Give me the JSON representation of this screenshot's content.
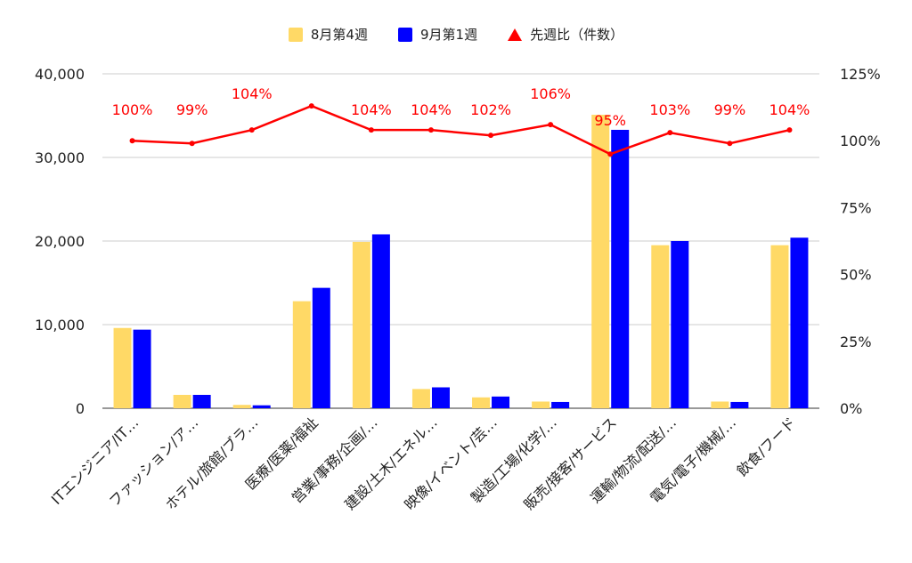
{
  "chart_data": {
    "type": "bar",
    "categories": [
      "ITエンジニア/IT…",
      "ファッション/ア…",
      "ホテル/旅館/ブラ…",
      "医療/医薬/福祉",
      "営業/事務/企画/…",
      "建設/土木/エネル…",
      "映像/イベント/芸…",
      "製造/工場/化学/…",
      "販売/接客/サービス",
      "運輸/物流/配送/…",
      "電気/電子/機械/…",
      "飲食/フード"
    ],
    "series": [
      {
        "name": "8月第4週",
        "color": "#ffd966",
        "values": [
          9600,
          1600,
          400,
          12800,
          19900,
          2300,
          1300,
          800,
          35100,
          19500,
          800,
          19500
        ]
      },
      {
        "name": "9月第1週",
        "color": "#0000ff",
        "values": [
          9400,
          1600,
          350,
          14400,
          20800,
          2500,
          1400,
          750,
          33300,
          20000,
          750,
          20400
        ]
      }
    ],
    "line": {
      "name": "先週比（件数）",
      "color": "#ff0000",
      "axis": "right",
      "values": [
        100,
        99,
        104,
        113,
        104,
        104,
        102,
        106,
        95,
        103,
        99,
        104
      ],
      "labels": [
        "100%",
        "99%",
        "104%",
        "",
        "104%",
        "104%",
        "102%",
        "106%",
        "95%",
        "103%",
        "99%",
        "104%"
      ]
    },
    "left_axis": {
      "ylim": [
        0,
        40000
      ],
      "ticks": [
        0,
        10000,
        20000,
        30000,
        40000
      ],
      "tick_labels": [
        "0",
        "10,000",
        "20,000",
        "30,000",
        "40,000"
      ]
    },
    "right_axis": {
      "ylim": [
        0,
        125
      ],
      "ticks": [
        0,
        25,
        50,
        75,
        100,
        125
      ],
      "tick_labels": [
        "0%",
        "25%",
        "50%",
        "75%",
        "100%",
        "125%"
      ]
    },
    "grid": true,
    "legend_position": "top-center"
  }
}
